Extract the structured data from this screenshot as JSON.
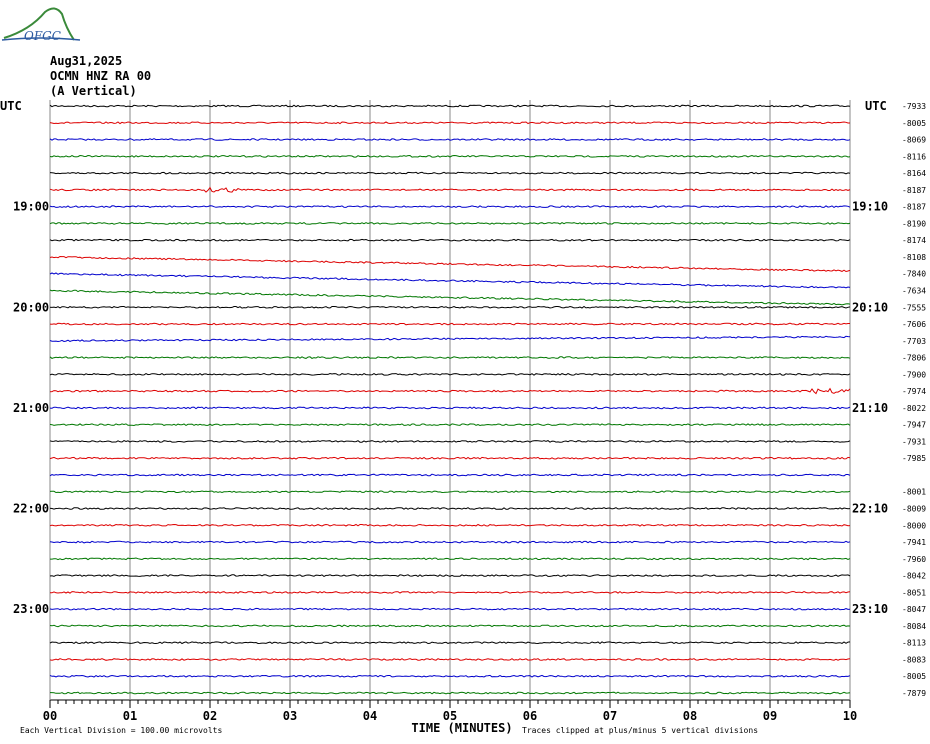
{
  "header": {
    "logo": "OFGC",
    "date": "Aug31,2025",
    "station": "OCMN HNZ RA 00",
    "component": "(A Vertical)"
  },
  "left_labels": [
    "UTC",
    "19:00",
    "20:00",
    "21:00",
    "22:00",
    "23:00"
  ],
  "right_labels": [
    "UTC",
    "19:10",
    "20:10",
    "21:10",
    "22:10",
    "23:10"
  ],
  "offsets": [
    "-7933",
    "-8005",
    "-8069",
    "-8116",
    "-8164",
    "-8187",
    "-8187",
    "-8190",
    "-8174",
    "-8108",
    "-7840",
    "-7634",
    "-7555",
    "-7606",
    "-7703",
    "-7806",
    "-7900",
    "-7974",
    "-8022",
    "-7947",
    "-7931",
    "-7985",
    "-8001",
    "-8009",
    "-8000",
    "-7941",
    "-7960",
    "-8042",
    "-8051",
    "-8047",
    "-8084",
    "-8113",
    "-8083",
    "-8005",
    "-7879"
  ],
  "x_ticks": [
    "00",
    "01",
    "02",
    "03",
    "04",
    "05",
    "06",
    "07",
    "08",
    "09",
    "10"
  ],
  "x_label": "TIME (MINUTES)",
  "footer": {
    "scale": "Each Vertical Division =  100.00 microvolts",
    "clip": "Traces clipped at plus/minus 5 vertical divisions"
  }
}
